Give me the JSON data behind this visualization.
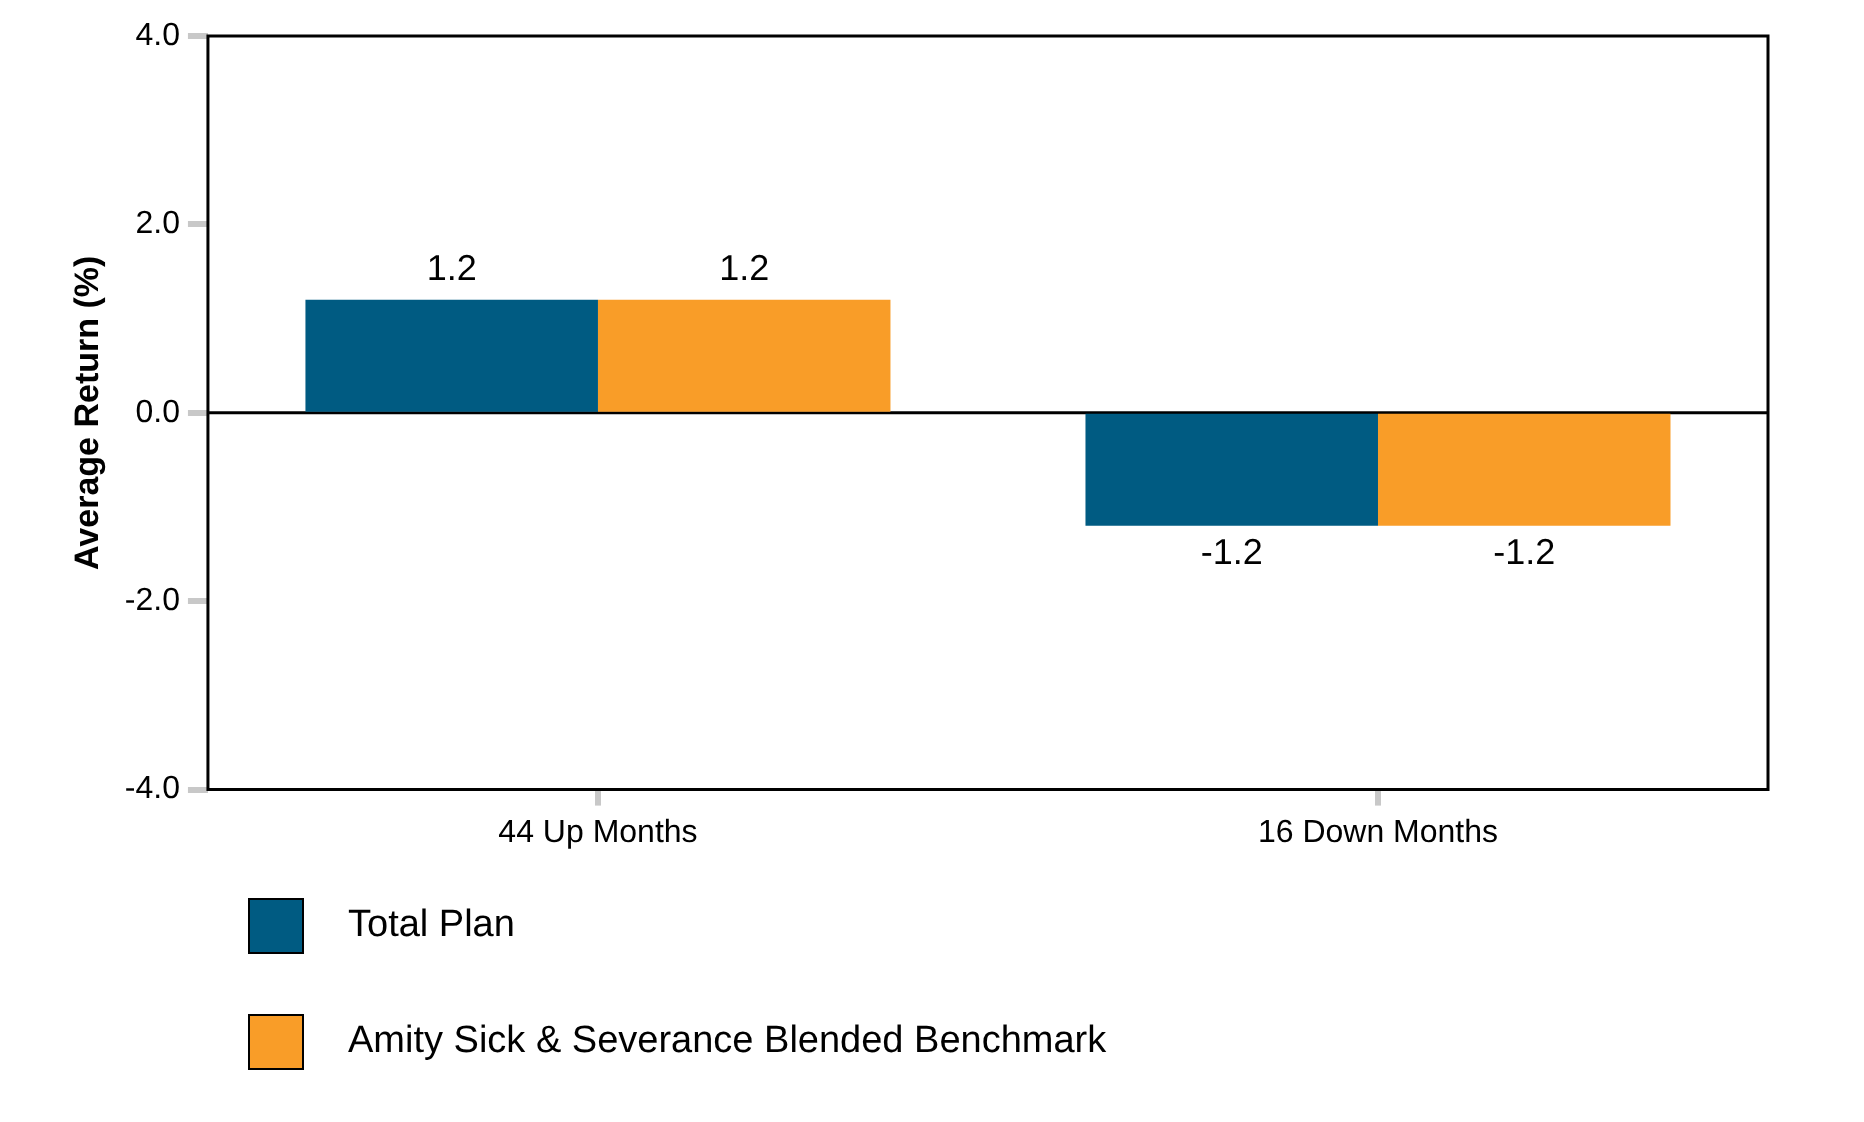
{
  "chart_data": {
    "type": "bar",
    "ylabel": "Average Return (%)",
    "categories": [
      "44 Up Months",
      "16 Down Months"
    ],
    "series": [
      {
        "name": "Total Plan",
        "color": "#005b82",
        "values": [
          1.2,
          -1.2
        ]
      },
      {
        "name": "Amity Sick & Severance Blended Benchmark",
        "color": "#f99d28",
        "values": [
          1.2,
          -1.2
        ]
      }
    ],
    "ylim": [
      -4,
      4
    ],
    "yticks": [
      {
        "value": -4,
        "label": "-4.0"
      },
      {
        "value": -2,
        "label": "-2.0"
      },
      {
        "value": 0,
        "label": "0.0"
      },
      {
        "value": 2,
        "label": "2.0"
      },
      {
        "value": 4,
        "label": "4.0"
      }
    ],
    "ref_lines": [
      {
        "axis": "y",
        "value": 0,
        "color": "#000000"
      }
    ],
    "data_labels": true,
    "legend": "bottom",
    "grid": false
  }
}
